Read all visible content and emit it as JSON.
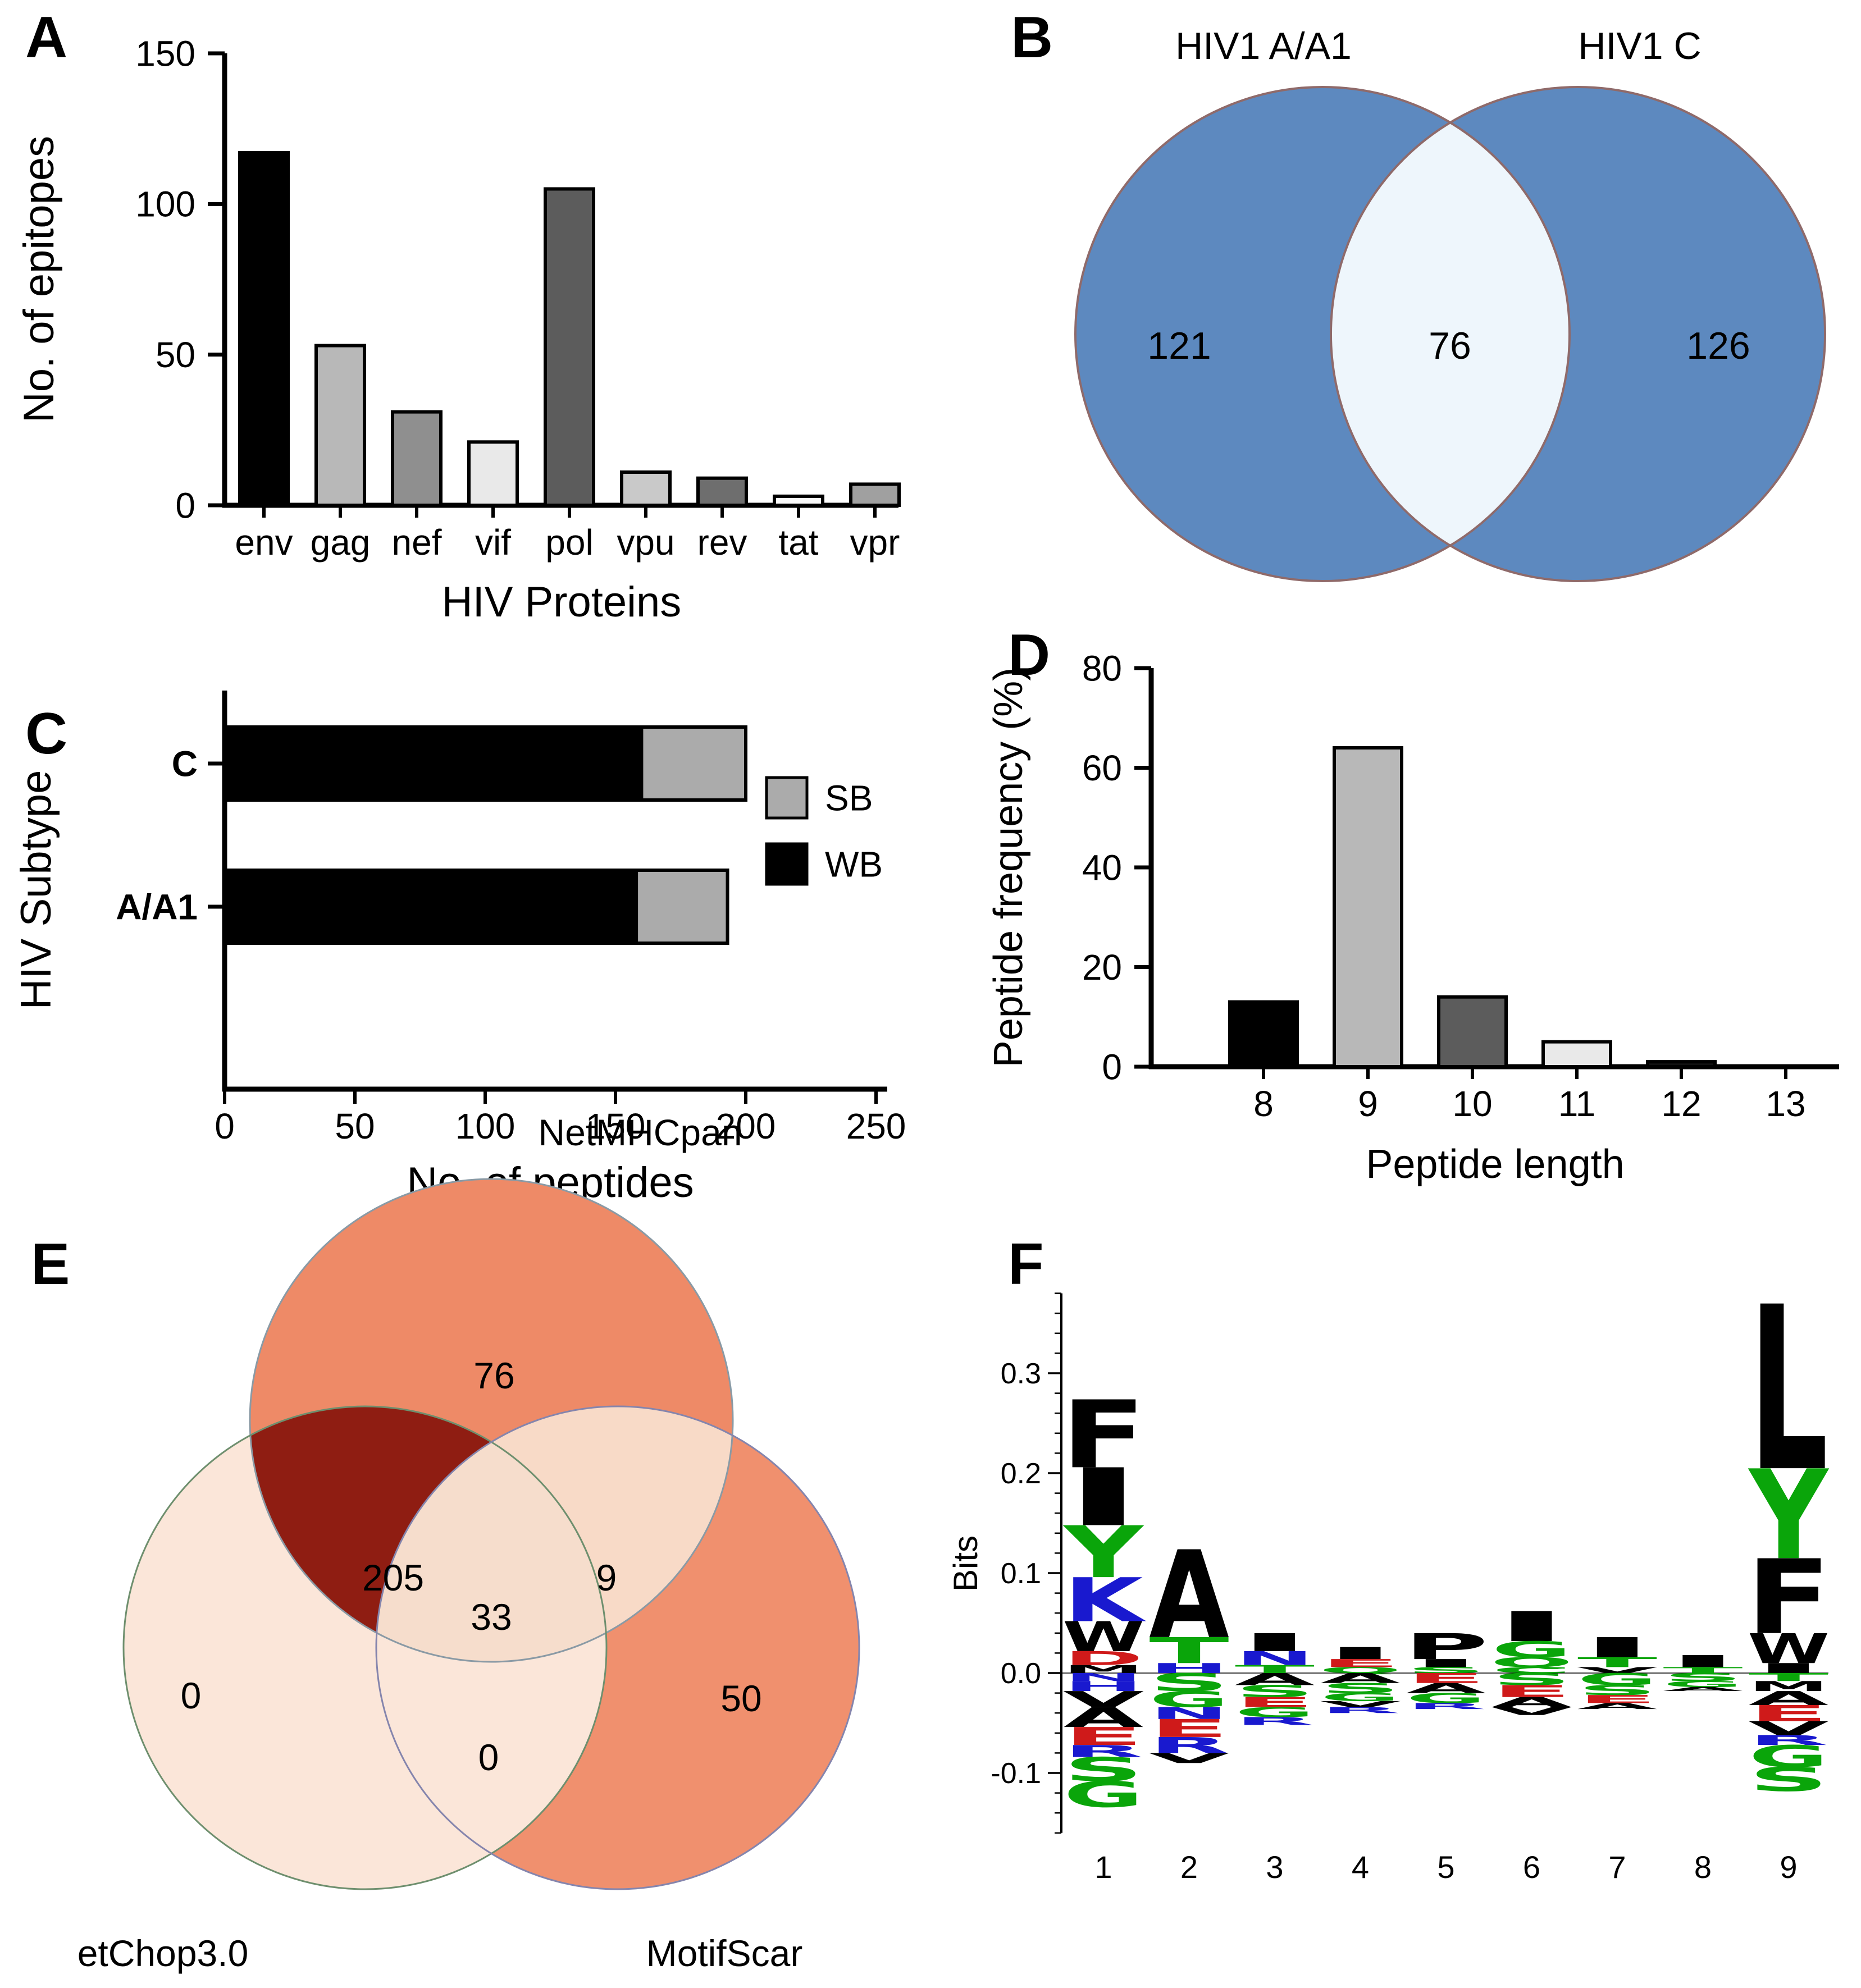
{
  "figure_background": "#ffffff",
  "panel_letters": [
    "A",
    "B",
    "C",
    "D",
    "E",
    "F"
  ],
  "chart_data": [
    {
      "id": "A",
      "type": "bar",
      "categories": [
        "env",
        "gag",
        "nef",
        "vif",
        "pol",
        "vpu",
        "rev",
        "tat",
        "vpr"
      ],
      "values": [
        117,
        53,
        31,
        21,
        105,
        11,
        9,
        3,
        7
      ],
      "bar_colors": [
        "#000000",
        "#b8b8b8",
        "#8f8f8f",
        "#e9e9e9",
        "#5c5c5c",
        "#c9c9c9",
        "#6e6e6e",
        "#fafafa",
        "#a0a0a0"
      ],
      "xlabel": "HIV Proteins",
      "ylabel": "No. of epitopes",
      "ylim": [
        0,
        150
      ],
      "yticks": [
        0,
        50,
        100,
        150
      ],
      "grid": false
    },
    {
      "id": "B",
      "type": "venn2",
      "sets": [
        {
          "label": "HIV1 A/A1",
          "only": 121
        },
        {
          "label": "HIV1 C",
          "only": 126
        }
      ],
      "overlap": 76,
      "circle_fill": "#5d89bf",
      "overlap_fill": "#eef6fc",
      "stroke": "#8f6a6a"
    },
    {
      "id": "C",
      "type": "stacked_bar_horizontal",
      "categories": [
        "C",
        "A/A1"
      ],
      "series": [
        {
          "name": "WB",
          "color": "#000000",
          "values": [
            160,
            158
          ]
        },
        {
          "name": "SB",
          "color": "#ababab",
          "values": [
            40,
            35
          ]
        }
      ],
      "legend": [
        "SB",
        "WB"
      ],
      "legend_position": "right",
      "xlabel": "No. of peptides",
      "ylabel": "HIV Subtype",
      "xlim": [
        0,
        250
      ],
      "xticks": [
        0,
        50,
        100,
        150,
        200,
        250
      ],
      "grid": false
    },
    {
      "id": "D",
      "type": "bar",
      "categories": [
        "8",
        "9",
        "10",
        "11",
        "12",
        "13"
      ],
      "values": [
        13,
        64,
        14,
        5,
        1,
        0
      ],
      "bar_colors": [
        "#000000",
        "#b8b8b8",
        "#5c5c5c",
        "#e9e9e9",
        "#111111",
        "#888888"
      ],
      "xlabel": "Peptide length",
      "ylabel": "Peptide frequency (%)",
      "ylim": [
        0,
        80
      ],
      "yticks": [
        0,
        20,
        40,
        60,
        80
      ],
      "grid": false
    },
    {
      "id": "E",
      "type": "venn3",
      "sets": [
        {
          "label": "NetMHCpan",
          "only": 76
        },
        {
          "label": "etChop3.0",
          "only": 0
        },
        {
          "label": "MotifScar",
          "only": 50
        }
      ],
      "overlaps": {
        "NetMHCpan_etChop3.0": 205,
        "NetMHCpan_MotifScar": 9,
        "etChop3.0_MotifScar": 0,
        "all_three": 33
      },
      "fills": {
        "NetMHCpan": "#ee8a67",
        "etChop3.0": "#fbe6d9",
        "MotifScar": "#f0906e",
        "NetMHCpan_etChop3.0": "#8f1d12",
        "NetMHCpan_MotifScar": "#f8dac7",
        "etChop3.0_MotifScar": "#fbe6d9",
        "all_three": "#f6ddcc"
      },
      "strokes": {
        "NetMHCpan": "#8a9aa5",
        "etChop3.0": "#6e8f6e",
        "MotifScar": "#8585ad"
      }
    },
    {
      "id": "F",
      "type": "sequence_logo",
      "ylabel": "Bits",
      "yticks": [
        -0.1,
        0.0,
        0.1,
        0.2,
        0.3
      ],
      "positions": [
        1,
        2,
        3,
        4,
        5,
        6,
        7,
        8,
        9
      ],
      "stacks": [
        {
          "up": [
            [
              "F",
              0.068
            ],
            [
              "I",
              0.058
            ],
            [
              "Y",
              0.052
            ],
            [
              "K",
              0.044
            ],
            [
              "W",
              0.03
            ],
            [
              "D",
              0.014
            ],
            [
              "M",
              0.008
            ]
          ],
          "down": [
            [
              "N",
              0.008
            ],
            [
              "H",
              0.01
            ],
            [
              "V",
              0.016
            ],
            [
              "A",
              0.02
            ],
            [
              "E",
              0.018
            ],
            [
              "R",
              0.012
            ],
            [
              "S",
              0.024
            ],
            [
              "G",
              0.026
            ]
          ]
        },
        {
          "up": [
            [
              "A",
              0.088
            ],
            [
              "T",
              0.026
            ],
            [
              "H",
              0.01
            ]
          ],
          "down": [
            [
              "S",
              0.018
            ],
            [
              "G",
              0.016
            ],
            [
              "N",
              0.012
            ],
            [
              "E",
              0.018
            ],
            [
              "R",
              0.016
            ],
            [
              "V",
              0.01
            ]
          ]
        },
        {
          "up": [
            [
              "I",
              0.018
            ],
            [
              "N",
              0.014
            ],
            [
              "T",
              0.008
            ]
          ],
          "down": [
            [
              "A",
              0.012
            ],
            [
              "S",
              0.012
            ],
            [
              "E",
              0.01
            ],
            [
              "G",
              0.01
            ],
            [
              "R",
              0.008
            ]
          ]
        },
        {
          "up": [
            [
              "I",
              0.012
            ],
            [
              "E",
              0.008
            ],
            [
              "Q",
              0.006
            ]
          ],
          "down": [
            [
              "A",
              0.01
            ],
            [
              "S",
              0.01
            ],
            [
              "G",
              0.008
            ],
            [
              "V",
              0.006
            ],
            [
              "R",
              0.006
            ]
          ]
        },
        {
          "up": [
            [
              "P",
              0.026
            ],
            [
              "I",
              0.008
            ],
            [
              "S",
              0.006
            ]
          ],
          "down": [
            [
              "E",
              0.01
            ],
            [
              "A",
              0.01
            ],
            [
              "G",
              0.01
            ],
            [
              "R",
              0.006
            ]
          ]
        },
        {
          "up": [
            [
              "I",
              0.03
            ],
            [
              "G",
              0.016
            ],
            [
              "Q",
              0.01
            ],
            [
              "C",
              0.006
            ]
          ],
          "down": [
            [
              "S",
              0.012
            ],
            [
              "E",
              0.012
            ],
            [
              "A",
              0.01
            ],
            [
              "V",
              0.008
            ]
          ]
        },
        {
          "up": [
            [
              "I",
              0.02
            ],
            [
              "T",
              0.01
            ],
            [
              "V",
              0.006
            ]
          ],
          "down": [
            [
              "G",
              0.012
            ],
            [
              "S",
              0.01
            ],
            [
              "E",
              0.008
            ],
            [
              "A",
              0.006
            ]
          ]
        },
        {
          "up": [
            [
              "I",
              0.012
            ],
            [
              "T",
              0.006
            ]
          ],
          "down": [
            [
              "S",
              0.008
            ],
            [
              "G",
              0.006
            ],
            [
              "A",
              0.004
            ]
          ]
        },
        {
          "up": [
            [
              "L",
              0.165
            ],
            [
              "Y",
              0.09
            ],
            [
              "F",
              0.075
            ],
            [
              "W",
              0.03
            ],
            [
              "I",
              0.01
            ]
          ],
          "down": [
            [
              "T",
              0.008
            ],
            [
              "M",
              0.01
            ],
            [
              "A",
              0.014
            ],
            [
              "E",
              0.016
            ],
            [
              "V",
              0.014
            ],
            [
              "R",
              0.01
            ],
            [
              "G",
              0.022
            ],
            [
              "S",
              0.024
            ]
          ]
        }
      ],
      "aa_colors": {
        "A": "#000000",
        "C": "#0aa50a",
        "D": "#cf1a1a",
        "E": "#cf1a1a",
        "F": "#000000",
        "G": "#0aa50a",
        "H": "#1919cf",
        "I": "#000000",
        "K": "#1919cf",
        "L": "#000000",
        "M": "#000000",
        "N": "#1919cf",
        "P": "#000000",
        "Q": "#0aa50a",
        "R": "#1919cf",
        "S": "#0aa50a",
        "T": "#0aa50a",
        "V": "#000000",
        "W": "#000000",
        "Y": "#0aa50a"
      }
    }
  ]
}
